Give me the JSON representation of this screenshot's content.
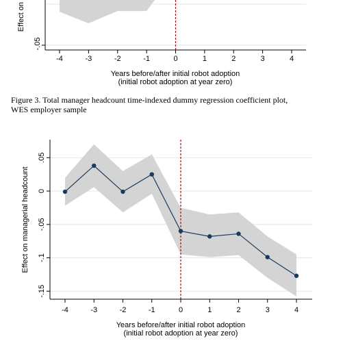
{
  "charts": {
    "top": {
      "ylabel": "Effect on",
      "ytick_labels": [
        "-.05"
      ],
      "xtick_labels": [
        "-4",
        "-3",
        "-2",
        "-1",
        "0",
        "1",
        "2",
        "3",
        "4"
      ],
      "xlabel_line1": "Years before/after initial robot adoption",
      "xlabel_line2": "(initial robot adoption at year zero)"
    },
    "bottom": {
      "ylabel": "Effect on managerial headcount",
      "ytick_labels": [
        "-.15",
        "-.1",
        "-.05",
        "0",
        ".05"
      ],
      "xtick_labels": [
        "-4",
        "-3",
        "-2",
        "-1",
        "0",
        "1",
        "2",
        "3",
        "4"
      ],
      "xlabel_line1": "Years before/after initial robot adoption",
      "xlabel_line2": "(initial robot adoption at year zero)"
    }
  },
  "caption": {
    "line1": "Figure 3. Total manager headcount time-indexed dummy regression coefficient plot,",
    "line2": "WES employer sample"
  },
  "colors": {
    "band": "#d4d4d4",
    "line": "#1b3a5c",
    "marker": "#1b3a5c",
    "reference_line": "#a01010",
    "grid": "#e6e6e6"
  },
  "chart_data": [
    {
      "type": "line",
      "x": [
        -4,
        -3,
        -2,
        -1
      ],
      "ci_lower": [
        -0.005,
        -0.02,
        -0.004,
        -0.004
      ],
      "ylim": [
        -0.055,
        0.05
      ],
      "reference_x": 0,
      "note": "top panel partially cropped; only part of the confidence band is visible"
    },
    {
      "type": "line",
      "x": [
        -4,
        -3,
        -2,
        -1,
        0,
        1,
        2,
        3,
        4
      ],
      "values": [
        -0.001,
        0.038,
        -0.001,
        0.025,
        -0.06,
        -0.068,
        -0.064,
        -0.099,
        -0.127
      ],
      "ci_upper": [
        0.02,
        0.07,
        0.03,
        0.055,
        -0.025,
        -0.035,
        -0.032,
        -0.068,
        -0.095
      ],
      "ci_lower": [
        -0.022,
        0.006,
        -0.032,
        -0.004,
        -0.095,
        -0.099,
        -0.096,
        -0.13,
        -0.158
      ],
      "yticks": [
        -0.15,
        -0.1,
        -0.05,
        0,
        0.05
      ],
      "ylim": [
        -0.162,
        0.077
      ],
      "reference_x": 0,
      "grid": true
    }
  ]
}
